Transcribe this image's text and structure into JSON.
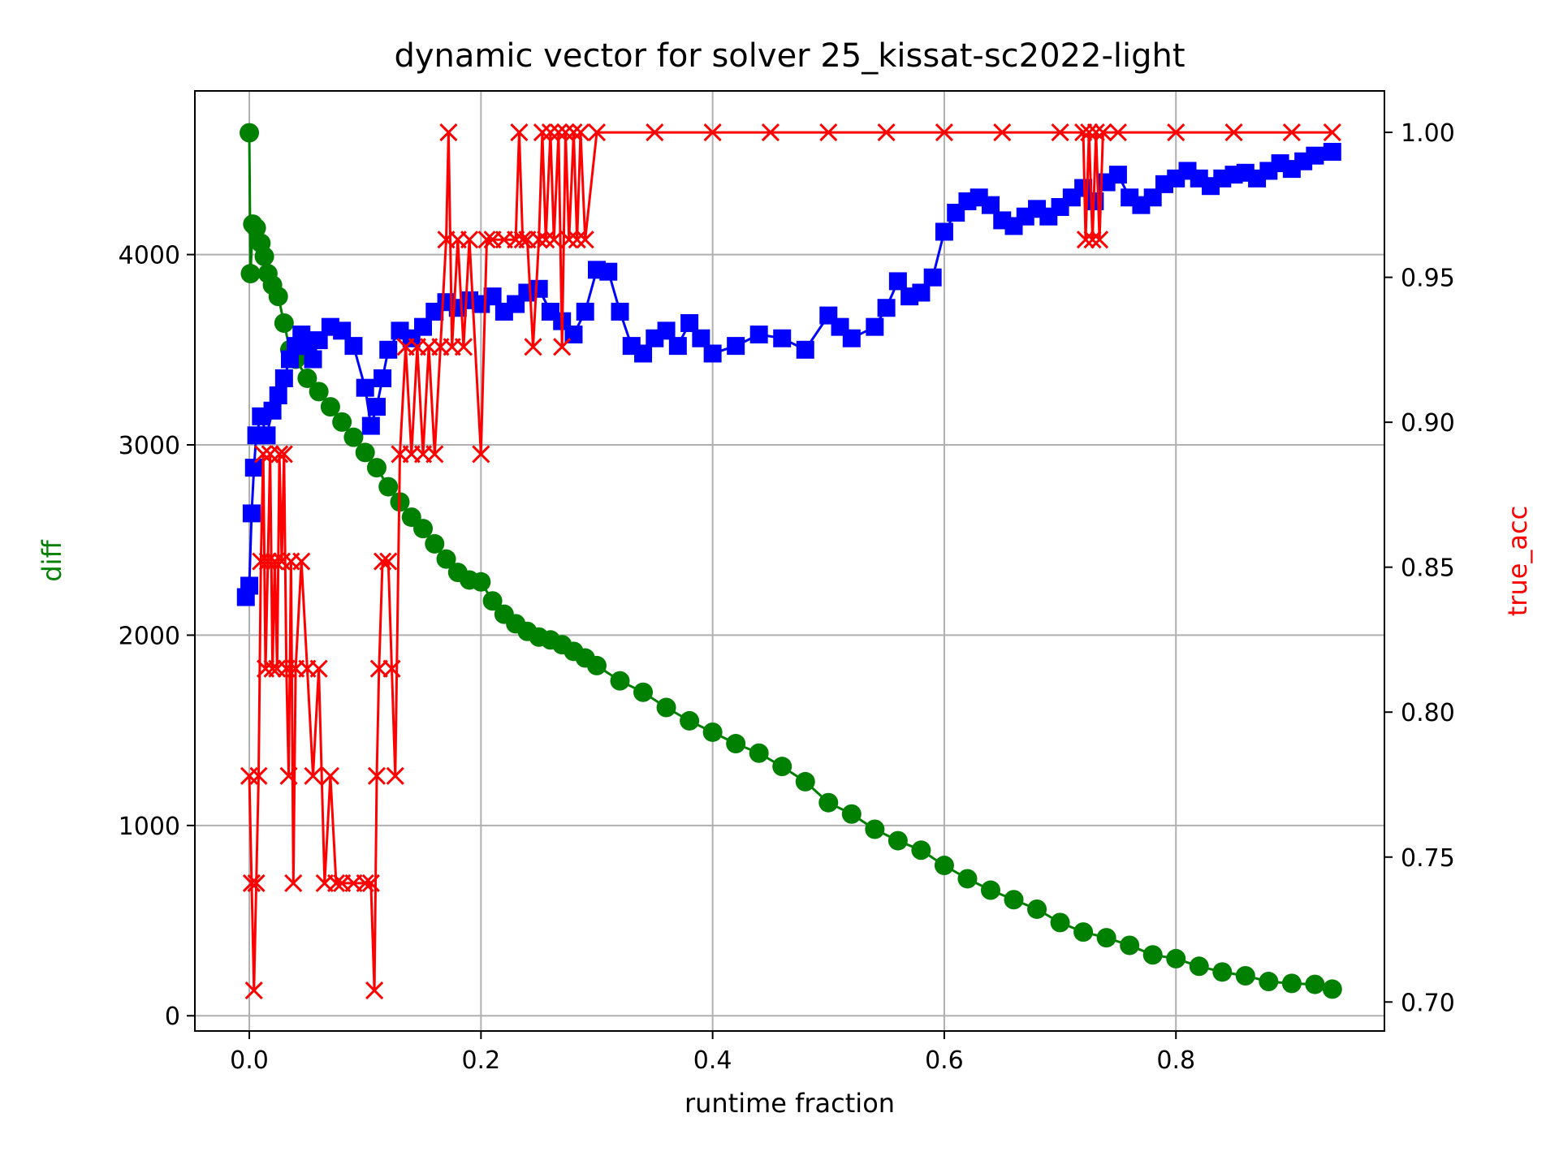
{
  "chart_data": {
    "type": "line",
    "title": "dynamic vector for solver 25_kissat-sc2022-light",
    "xlabel": "runtime fraction",
    "ylabel_left": "diff",
    "ylabel_right": "true_acc",
    "xlim": [
      -0.047,
      0.98
    ],
    "ylim_left": [
      -80,
      4860
    ],
    "ylim_right": [
      0.69,
      1.0143
    ],
    "grid": true,
    "x_ticks": [
      0.0,
      0.2,
      0.4,
      0.6,
      0.8
    ],
    "x_tick_labels": [
      "0.0",
      "0.2",
      "0.4",
      "0.6",
      "0.8"
    ],
    "y_left_ticks": [
      0,
      1000,
      2000,
      3000,
      4000
    ],
    "y_left_tick_labels": [
      "0",
      "1000",
      "2000",
      "3000",
      "4000"
    ],
    "y_right_ticks": [
      0.7,
      0.75,
      0.8,
      0.85,
      0.9,
      0.95,
      1.0
    ],
    "y_right_tick_labels": [
      "0.70",
      "0.75",
      "0.80",
      "0.85",
      "0.90",
      "0.95",
      "1.00"
    ],
    "colors": {
      "diff": "#008000",
      "blue": "#0000ff",
      "true_acc": "#ff0000"
    },
    "series": [
      {
        "axis": "left",
        "marker": "circle",
        "color": "#008000",
        "points": [
          [
            0.0,
            4640
          ],
          [
            0.001,
            3900
          ],
          [
            0.003,
            4160
          ],
          [
            0.006,
            4140
          ],
          [
            0.01,
            4060
          ],
          [
            0.013,
            3990
          ],
          [
            0.016,
            3900
          ],
          [
            0.02,
            3840
          ],
          [
            0.025,
            3780
          ],
          [
            0.03,
            3640
          ],
          [
            0.035,
            3500
          ],
          [
            0.04,
            3450
          ],
          [
            0.05,
            3350
          ],
          [
            0.06,
            3280
          ],
          [
            0.07,
            3200
          ],
          [
            0.08,
            3120
          ],
          [
            0.09,
            3040
          ],
          [
            0.1,
            2960
          ],
          [
            0.11,
            2880
          ],
          [
            0.12,
            2780
          ],
          [
            0.13,
            2700
          ],
          [
            0.14,
            2620
          ],
          [
            0.15,
            2560
          ],
          [
            0.16,
            2480
          ],
          [
            0.17,
            2400
          ],
          [
            0.18,
            2330
          ],
          [
            0.19,
            2290
          ],
          [
            0.2,
            2280
          ],
          [
            0.21,
            2180
          ],
          [
            0.22,
            2110
          ],
          [
            0.23,
            2060
          ],
          [
            0.24,
            2020
          ],
          [
            0.25,
            1990
          ],
          [
            0.26,
            1975
          ],
          [
            0.27,
            1950
          ],
          [
            0.28,
            1915
          ],
          [
            0.29,
            1880
          ],
          [
            0.3,
            1840
          ],
          [
            0.32,
            1760
          ],
          [
            0.34,
            1700
          ],
          [
            0.36,
            1620
          ],
          [
            0.38,
            1550
          ],
          [
            0.4,
            1490
          ],
          [
            0.42,
            1430
          ],
          [
            0.44,
            1380
          ],
          [
            0.46,
            1310
          ],
          [
            0.48,
            1230
          ],
          [
            0.5,
            1120
          ],
          [
            0.52,
            1060
          ],
          [
            0.54,
            980
          ],
          [
            0.56,
            920
          ],
          [
            0.58,
            870
          ],
          [
            0.6,
            790
          ],
          [
            0.62,
            720
          ],
          [
            0.64,
            660
          ],
          [
            0.66,
            610
          ],
          [
            0.68,
            560
          ],
          [
            0.7,
            490
          ],
          [
            0.72,
            440
          ],
          [
            0.74,
            410
          ],
          [
            0.76,
            370
          ],
          [
            0.78,
            320
          ],
          [
            0.8,
            300
          ],
          [
            0.82,
            260
          ],
          [
            0.84,
            230
          ],
          [
            0.86,
            210
          ],
          [
            0.88,
            180
          ],
          [
            0.9,
            170
          ],
          [
            0.92,
            165
          ],
          [
            0.935,
            140
          ]
        ]
      },
      {
        "axis": "left",
        "marker": "square",
        "color": "#0000ff",
        "points": [
          [
            -0.003,
            2200
          ],
          [
            0.0,
            2260
          ],
          [
            0.002,
            2640
          ],
          [
            0.004,
            2880
          ],
          [
            0.006,
            3050
          ],
          [
            0.01,
            3150
          ],
          [
            0.015,
            3050
          ],
          [
            0.02,
            3180
          ],
          [
            0.025,
            3260
          ],
          [
            0.03,
            3350
          ],
          [
            0.035,
            3450
          ],
          [
            0.04,
            3520
          ],
          [
            0.045,
            3580
          ],
          [
            0.05,
            3520
          ],
          [
            0.055,
            3450
          ],
          [
            0.06,
            3550
          ],
          [
            0.07,
            3620
          ],
          [
            0.08,
            3600
          ],
          [
            0.09,
            3520
          ],
          [
            0.1,
            3300
          ],
          [
            0.105,
            3100
          ],
          [
            0.11,
            3200
          ],
          [
            0.115,
            3350
          ],
          [
            0.12,
            3500
          ],
          [
            0.13,
            3600
          ],
          [
            0.14,
            3560
          ],
          [
            0.15,
            3620
          ],
          [
            0.16,
            3700
          ],
          [
            0.17,
            3750
          ],
          [
            0.18,
            3720
          ],
          [
            0.19,
            3760
          ],
          [
            0.2,
            3740
          ],
          [
            0.21,
            3780
          ],
          [
            0.22,
            3700
          ],
          [
            0.23,
            3740
          ],
          [
            0.24,
            3800
          ],
          [
            0.25,
            3820
          ],
          [
            0.26,
            3700
          ],
          [
            0.27,
            3650
          ],
          [
            0.28,
            3580
          ],
          [
            0.29,
            3700
          ],
          [
            0.3,
            3920
          ],
          [
            0.31,
            3910
          ],
          [
            0.32,
            3700
          ],
          [
            0.33,
            3520
          ],
          [
            0.34,
            3480
          ],
          [
            0.35,
            3560
          ],
          [
            0.36,
            3600
          ],
          [
            0.37,
            3520
          ],
          [
            0.38,
            3640
          ],
          [
            0.39,
            3560
          ],
          [
            0.4,
            3480
          ],
          [
            0.42,
            3520
          ],
          [
            0.44,
            3580
          ],
          [
            0.46,
            3560
          ],
          [
            0.48,
            3500
          ],
          [
            0.5,
            3680
          ],
          [
            0.51,
            3620
          ],
          [
            0.52,
            3560
          ],
          [
            0.54,
            3620
          ],
          [
            0.55,
            3720
          ],
          [
            0.56,
            3860
          ],
          [
            0.57,
            3780
          ],
          [
            0.58,
            3800
          ],
          [
            0.59,
            3880
          ],
          [
            0.6,
            4120
          ],
          [
            0.61,
            4220
          ],
          [
            0.62,
            4280
          ],
          [
            0.63,
            4300
          ],
          [
            0.64,
            4260
          ],
          [
            0.65,
            4180
          ],
          [
            0.66,
            4150
          ],
          [
            0.67,
            4200
          ],
          [
            0.68,
            4240
          ],
          [
            0.69,
            4200
          ],
          [
            0.7,
            4250
          ],
          [
            0.71,
            4300
          ],
          [
            0.72,
            4350
          ],
          [
            0.73,
            4280
          ],
          [
            0.74,
            4380
          ],
          [
            0.75,
            4420
          ],
          [
            0.76,
            4300
          ],
          [
            0.77,
            4260
          ],
          [
            0.78,
            4300
          ],
          [
            0.79,
            4370
          ],
          [
            0.8,
            4400
          ],
          [
            0.81,
            4440
          ],
          [
            0.82,
            4400
          ],
          [
            0.83,
            4360
          ],
          [
            0.84,
            4400
          ],
          [
            0.85,
            4420
          ],
          [
            0.86,
            4430
          ],
          [
            0.87,
            4400
          ],
          [
            0.88,
            4440
          ],
          [
            0.89,
            4480
          ],
          [
            0.9,
            4450
          ],
          [
            0.91,
            4490
          ],
          [
            0.92,
            4520
          ],
          [
            0.935,
            4540
          ]
        ]
      },
      {
        "axis": "right",
        "marker": "x",
        "color": "#ff0000",
        "points": [
          [
            0.0,
            0.778
          ],
          [
            0.002,
            0.741
          ],
          [
            0.004,
            0.704
          ],
          [
            0.006,
            0.741
          ],
          [
            0.008,
            0.778
          ],
          [
            0.01,
            0.852
          ],
          [
            0.012,
            0.889
          ],
          [
            0.014,
            0.815
          ],
          [
            0.016,
            0.852
          ],
          [
            0.018,
            0.889
          ],
          [
            0.02,
            0.815
          ],
          [
            0.022,
            0.852
          ],
          [
            0.024,
            0.815
          ],
          [
            0.026,
            0.889
          ],
          [
            0.028,
            0.852
          ],
          [
            0.03,
            0.889
          ],
          [
            0.032,
            0.815
          ],
          [
            0.034,
            0.778
          ],
          [
            0.036,
            0.852
          ],
          [
            0.038,
            0.741
          ],
          [
            0.04,
            0.815
          ],
          [
            0.045,
            0.852
          ],
          [
            0.05,
            0.815
          ],
          [
            0.055,
            0.778
          ],
          [
            0.06,
            0.815
          ],
          [
            0.065,
            0.741
          ],
          [
            0.07,
            0.778
          ],
          [
            0.075,
            0.741
          ],
          [
            0.08,
            0.741
          ],
          [
            0.09,
            0.741
          ],
          [
            0.1,
            0.741
          ],
          [
            0.105,
            0.741
          ],
          [
            0.108,
            0.704
          ],
          [
            0.11,
            0.778
          ],
          [
            0.112,
            0.815
          ],
          [
            0.115,
            0.852
          ],
          [
            0.12,
            0.852
          ],
          [
            0.123,
            0.815
          ],
          [
            0.126,
            0.778
          ],
          [
            0.13,
            0.889
          ],
          [
            0.135,
            0.926
          ],
          [
            0.14,
            0.889
          ],
          [
            0.145,
            0.926
          ],
          [
            0.15,
            0.889
          ],
          [
            0.155,
            0.926
          ],
          [
            0.16,
            0.889
          ],
          [
            0.165,
            0.926
          ],
          [
            0.17,
            0.963
          ],
          [
            0.172,
            1.0
          ],
          [
            0.175,
            0.926
          ],
          [
            0.18,
            0.963
          ],
          [
            0.185,
            0.926
          ],
          [
            0.19,
            0.963
          ],
          [
            0.2,
            0.889
          ],
          [
            0.205,
            0.963
          ],
          [
            0.21,
            0.963
          ],
          [
            0.22,
            0.963
          ],
          [
            0.23,
            0.963
          ],
          [
            0.233,
            1.0
          ],
          [
            0.236,
            0.963
          ],
          [
            0.24,
            0.963
          ],
          [
            0.245,
            0.926
          ],
          [
            0.25,
            0.963
          ],
          [
            0.253,
            1.0
          ],
          [
            0.256,
            0.963
          ],
          [
            0.26,
            1.0
          ],
          [
            0.263,
            0.963
          ],
          [
            0.267,
            1.0
          ],
          [
            0.27,
            0.926
          ],
          [
            0.273,
            1.0
          ],
          [
            0.276,
            0.963
          ],
          [
            0.28,
            1.0
          ],
          [
            0.283,
            0.963
          ],
          [
            0.286,
            1.0
          ],
          [
            0.29,
            0.963
          ],
          [
            0.3,
            1.0
          ],
          [
            0.35,
            1.0
          ],
          [
            0.4,
            1.0
          ],
          [
            0.45,
            1.0
          ],
          [
            0.5,
            1.0
          ],
          [
            0.55,
            1.0
          ],
          [
            0.6,
            1.0
          ],
          [
            0.65,
            1.0
          ],
          [
            0.7,
            1.0
          ],
          [
            0.72,
            1.0
          ],
          [
            0.722,
            0.963
          ],
          [
            0.725,
            1.0
          ],
          [
            0.728,
            0.963
          ],
          [
            0.731,
            1.0
          ],
          [
            0.734,
            0.963
          ],
          [
            0.737,
            1.0
          ],
          [
            0.75,
            1.0
          ],
          [
            0.8,
            1.0
          ],
          [
            0.85,
            1.0
          ],
          [
            0.9,
            1.0
          ],
          [
            0.935,
            1.0
          ]
        ]
      }
    ]
  }
}
